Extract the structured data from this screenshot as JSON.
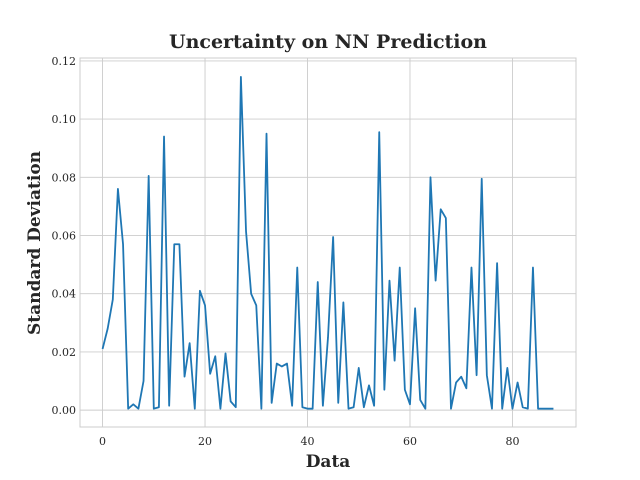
{
  "chart_data": {
    "type": "line",
    "title": "Uncertainty on NN Prediction",
    "xlabel": "Data",
    "ylabel": "Standard Deviation",
    "xlim": [
      -4.4,
      92.4
    ],
    "ylim": [
      -0.0058,
      0.121
    ],
    "xticks": [
      0,
      20,
      40,
      60,
      80
    ],
    "xtick_labels": [
      "0",
      "20",
      "40",
      "60",
      "80"
    ],
    "yticks": [
      0.0,
      0.02,
      0.04,
      0.06,
      0.08,
      0.1,
      0.12
    ],
    "ytick_labels": [
      "0.00",
      "0.02",
      "0.04",
      "0.06",
      "0.08",
      "0.10",
      "0.12"
    ],
    "grid": true,
    "colors": {
      "line": "#1f77b4",
      "grid": "#cccccc",
      "text": "#262626"
    },
    "series": [
      {
        "x": [
          0,
          1,
          2,
          3,
          4,
          5,
          6,
          7,
          8,
          9,
          10,
          11,
          12,
          13,
          14,
          15,
          16,
          17,
          18,
          19,
          20,
          21,
          22,
          23,
          24,
          25,
          26,
          27,
          28,
          29,
          30,
          31,
          32,
          33,
          34,
          35,
          36,
          37,
          38,
          39,
          40,
          41,
          42,
          43,
          44,
          45,
          46,
          47,
          48,
          49,
          50,
          51,
          52,
          53,
          54,
          55,
          56,
          57,
          58,
          59,
          60,
          61,
          62,
          63,
          64,
          65,
          66,
          67,
          68,
          69,
          70,
          71,
          72,
          73,
          74,
          75,
          76,
          77,
          78,
          79,
          80,
          81,
          82,
          83,
          84,
          85,
          86,
          87,
          88
        ],
        "values": [
          0.021,
          0.028,
          0.038,
          0.076,
          0.057,
          0.0005,
          0.002,
          0.0005,
          0.01,
          0.0805,
          0.0005,
          0.001,
          0.094,
          0.0015,
          0.057,
          0.057,
          0.0115,
          0.023,
          0.0005,
          0.041,
          0.036,
          0.0125,
          0.0185,
          0.0005,
          0.0195,
          0.003,
          0.001,
          0.1145,
          0.0615,
          0.04,
          0.036,
          0.0005,
          0.095,
          0.0025,
          0.016,
          0.015,
          0.016,
          0.0015,
          0.049,
          0.001,
          0.0005,
          0.0005,
          0.044,
          0.0015,
          0.025,
          0.0595,
          0.0025,
          0.037,
          0.0005,
          0.001,
          0.0145,
          0.001,
          0.0085,
          0.0015,
          0.0955,
          0.007,
          0.0445,
          0.017,
          0.049,
          0.007,
          0.002,
          0.035,
          0.0035,
          0.0005,
          0.08,
          0.0445,
          0.069,
          0.066,
          0.0005,
          0.0095,
          0.0115,
          0.0075,
          0.049,
          0.012,
          0.0795,
          0.012,
          0.0005,
          0.0505,
          0.0005,
          0.0145,
          0.0005,
          0.0095,
          0.001,
          0.0005,
          0.049,
          0.0005,
          0.0005,
          0.0005,
          0.0005
        ]
      }
    ]
  }
}
